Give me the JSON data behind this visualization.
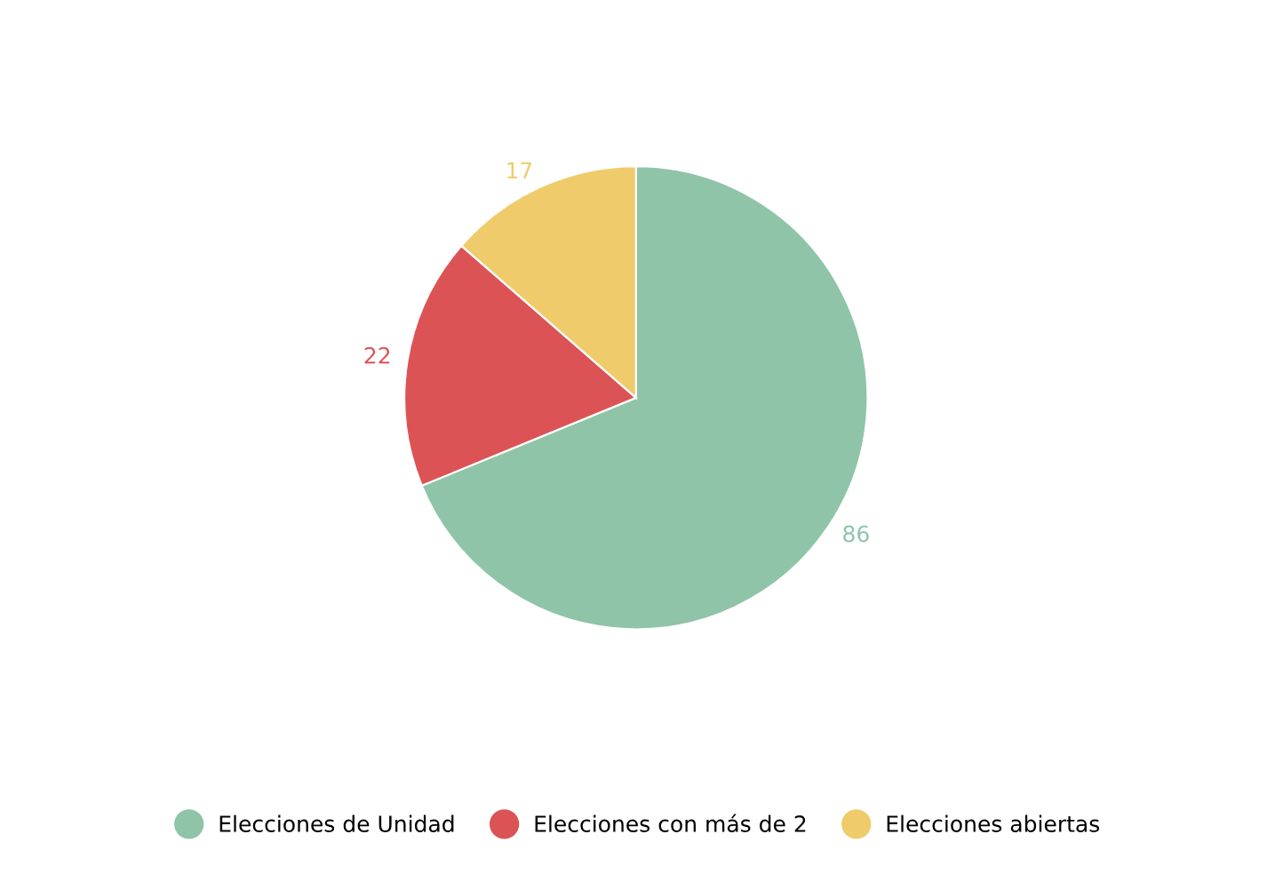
{
  "chart_data": {
    "type": "pie",
    "categories": [
      "Elecciones de Unidad",
      "Elecciones con más de 2",
      "Elecciones abiertas"
    ],
    "values": [
      86,
      22,
      17
    ],
    "colors": [
      "#8fc4a8",
      "#dc5356",
      "#efcb6b"
    ],
    "data_labels": true,
    "legend": "bottom"
  }
}
